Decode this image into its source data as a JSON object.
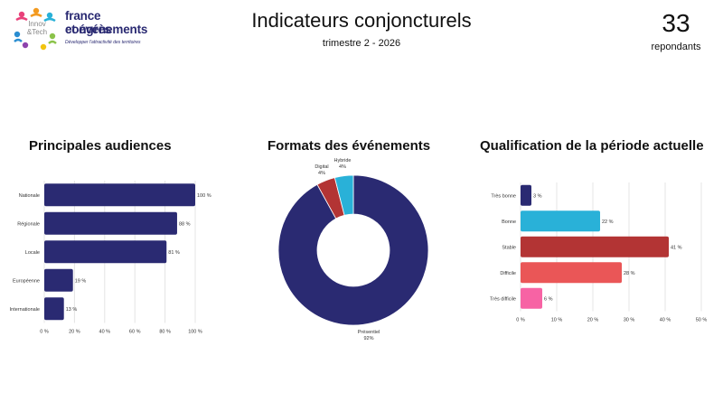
{
  "logo": {
    "mark_text": "Innov &Tech",
    "line1": "france congrès",
    "line2": "et événements",
    "tagline": "Développer l'attractivité des territoires"
  },
  "header": {
    "title": "Indicateurs conjoncturels",
    "subtitle": "trimestre 2 - 2026"
  },
  "respondents": {
    "count": "33",
    "label": "repondants"
  },
  "colors": {
    "navy": "#2a2a72",
    "cyan": "#29b1d8",
    "red": "#b33434",
    "coral": "#ea5657",
    "pink": "#f763a4",
    "grid": "#e4e4e4"
  },
  "chart_data": [
    {
      "type": "bar",
      "orientation": "horizontal",
      "title": "Principales audiences",
      "categories": [
        "Nationale",
        "Régionale",
        "Locale",
        "Européenne",
        "Internationale"
      ],
      "values": [
        100,
        88,
        81,
        19,
        13
      ],
      "value_labels": [
        "100 %",
        "88 %",
        "81 %",
        "19 %",
        "13 %"
      ],
      "xlim": [
        0,
        100
      ],
      "ticks": [
        "0 %",
        "20 %",
        "40 %",
        "60 %",
        "80 %",
        "100 %"
      ],
      "grid": true,
      "color": "#2a2a72"
    },
    {
      "type": "pie",
      "donut": true,
      "title": "Formats des événements",
      "categories": [
        "Présentiel",
        "Digital",
        "Hybride"
      ],
      "values": [
        92,
        4,
        4
      ],
      "value_labels": [
        "92%",
        "4%",
        "4%"
      ],
      "colors": [
        "#2a2a72",
        "#b33434",
        "#29b1d8"
      ]
    },
    {
      "type": "bar",
      "orientation": "horizontal",
      "title": "Qualification de la période actuelle",
      "categories": [
        "Très bonne",
        "Bonne",
        "Stable",
        "Difficile",
        "Très difficile"
      ],
      "values": [
        3,
        22,
        41,
        28,
        6
      ],
      "value_labels": [
        "3 %",
        "22 %",
        "41 %",
        "28 %",
        "6 %"
      ],
      "xlim": [
        0,
        50
      ],
      "ticks": [
        "0 %",
        "10 %",
        "20 %",
        "30 %",
        "40 %",
        "50 %"
      ],
      "grid": true,
      "colors": [
        "#2a2a72",
        "#29b1d8",
        "#b33434",
        "#ea5657",
        "#f763a4"
      ]
    }
  ]
}
